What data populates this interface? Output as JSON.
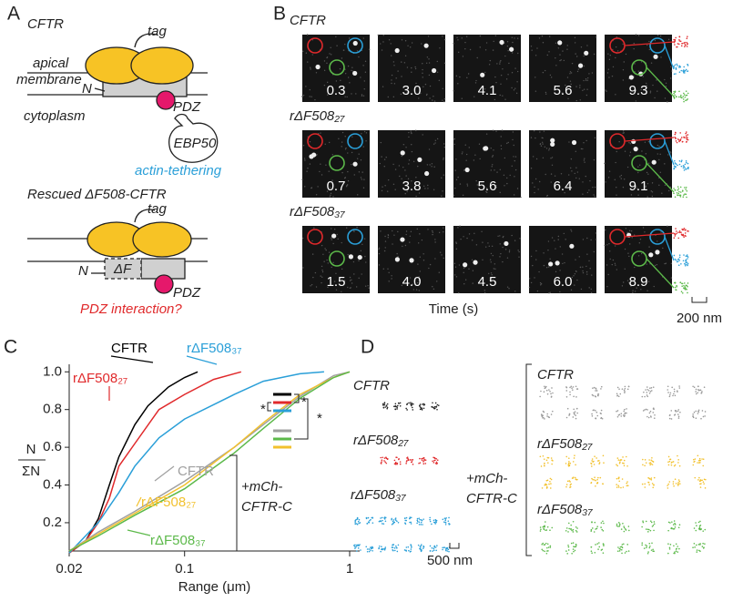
{
  "panel_a": {
    "label": "A",
    "wild_type": {
      "title": "CFTR",
      "tag": "tag",
      "membrane": [
        "apical",
        "membrane"
      ],
      "n_terminus": "N",
      "pdz": "PDZ",
      "cytoplasm": "cytoplasm",
      "partner": "EBP50",
      "note": "actin-tethering"
    },
    "mutant": {
      "title": "Rescued ΔF508-CFTR",
      "tag": "tag",
      "deletion": "ΔF",
      "n_terminus": "N",
      "pdz": "PDZ",
      "note": "PDZ interaction?"
    }
  },
  "panel_b": {
    "label": "B",
    "rows": [
      {
        "name": "CFTR",
        "times": [
          "0.3",
          "3.0",
          "4.1",
          "5.6",
          "9.3"
        ]
      },
      {
        "name": "rΔF508₂₇",
        "times": [
          "0.7",
          "3.8",
          "5.6",
          "6.4",
          "9.1"
        ]
      },
      {
        "name": "rΔF508₃₇",
        "times": [
          "1.5",
          "4.0",
          "4.5",
          "6.0",
          "8.9"
        ]
      }
    ],
    "x_label": "Time (s)",
    "scale_bar": "200 nm"
  },
  "chart_data": {
    "type": "line",
    "panel_label": "C",
    "x_label": "Range (μm)",
    "y_label": {
      "numerator": "N",
      "denominator": "ΣN"
    },
    "log_x": true,
    "xlim": [
      0.02,
      1.15
    ],
    "ylim": [
      0.05,
      1.04
    ],
    "xticks": [
      0.02,
      0.1,
      1
    ],
    "yticks": [
      0.2,
      0.4,
      0.6,
      0.8,
      {
        "value": 1,
        "label": "1.0"
      }
    ],
    "series": [
      {
        "name": "CFTR",
        "color": "#000000",
        "x": [
          0.02,
          0.025,
          0.03,
          0.035,
          0.04,
          0.05,
          0.06,
          0.08,
          0.1,
          0.12
        ],
        "values": [
          0.04,
          0.1,
          0.22,
          0.4,
          0.55,
          0.72,
          0.82,
          0.92,
          0.97,
          1.0
        ]
      },
      {
        "name": "rΔF508₂₇",
        "color": "#e0292b",
        "x": [
          0.02,
          0.025,
          0.03,
          0.035,
          0.04,
          0.05,
          0.07,
          0.1,
          0.15,
          0.22
        ],
        "values": [
          0.04,
          0.1,
          0.2,
          0.33,
          0.5,
          0.62,
          0.8,
          0.88,
          0.96,
          1.0
        ]
      },
      {
        "name": "rΔF508₃₇",
        "color": "#2a9fd8",
        "x": [
          0.02,
          0.03,
          0.04,
          0.05,
          0.07,
          0.1,
          0.2,
          0.3,
          0.5,
          0.7
        ],
        "values": [
          0.04,
          0.2,
          0.36,
          0.5,
          0.65,
          0.75,
          0.88,
          0.95,
          0.99,
          1.0
        ]
      },
      {
        "name": "CFTR",
        "color": "#a0a0a0",
        "x": [
          0.02,
          0.03,
          0.05,
          0.1,
          0.2,
          0.3,
          0.5,
          0.8,
          1
        ],
        "values": [
          0.05,
          0.15,
          0.26,
          0.42,
          0.6,
          0.72,
          0.87,
          0.98,
          1.0
        ]
      },
      {
        "name": "rΔF508₂₇",
        "color": "#f2c12e",
        "x": [
          0.02,
          0.03,
          0.05,
          0.1,
          0.2,
          0.3,
          0.5,
          0.8,
          1
        ],
        "values": [
          0.05,
          0.14,
          0.25,
          0.4,
          0.6,
          0.73,
          0.88,
          0.97,
          1.0
        ]
      },
      {
        "name": "rΔF508₃₇",
        "color": "#5cb94a",
        "x": [
          0.02,
          0.03,
          0.05,
          0.1,
          0.2,
          0.3,
          0.5,
          0.8,
          1
        ],
        "values": [
          0.05,
          0.13,
          0.24,
          0.38,
          0.57,
          0.7,
          0.86,
          0.97,
          1.0
        ]
      }
    ],
    "annotation": [
      "+mCh-",
      "CFTR-C"
    ],
    "significance": [
      "*",
      "*",
      "*"
    ]
  },
  "panel_d": {
    "label": "D",
    "left_labels": [
      "CFTR",
      "rΔF508₂₇",
      "rΔF508₃₇"
    ],
    "scale_bar": "500 nm",
    "annotation": [
      "+mCh-",
      "CFTR-C"
    ],
    "right_labels": [
      "CFTR",
      "rΔF508₂₇",
      "rΔF508₃₇"
    ]
  }
}
